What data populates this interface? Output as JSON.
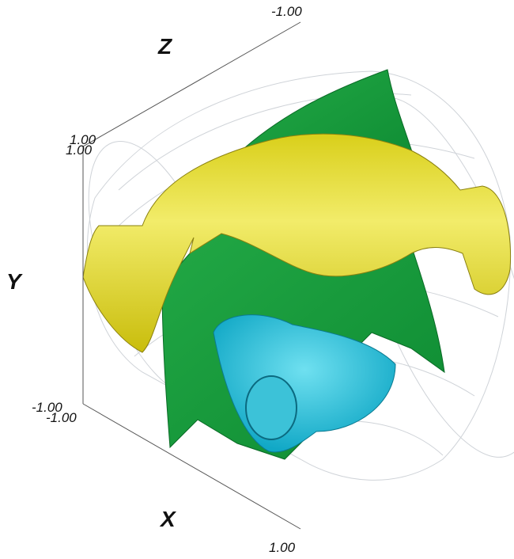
{
  "axes": {
    "z": {
      "label": "Z",
      "start": "1.00",
      "end": "-1.00"
    },
    "y": {
      "label": "Y",
      "start": "-1.00",
      "end": "1.00"
    },
    "x": {
      "label": "X",
      "start": "-1.00",
      "end": "1.00"
    }
  }
}
